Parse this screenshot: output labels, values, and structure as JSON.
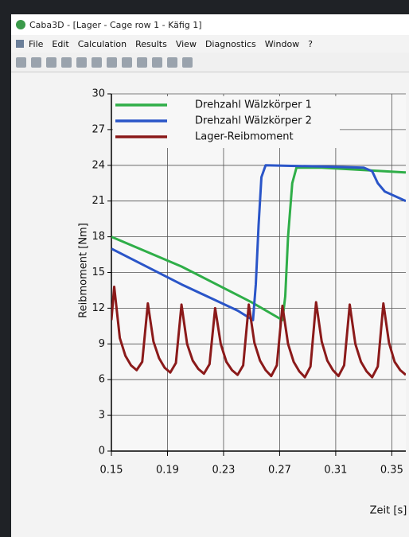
{
  "window": {
    "title": "Caba3D - [Lager - Cage row 1 - Käfig 1]",
    "menu": [
      "File",
      "Edit",
      "Calculation",
      "Results",
      "View",
      "Diagnostics",
      "Window",
      "?"
    ]
  },
  "chart_data": {
    "type": "line",
    "xlabel": "Zeit [s]",
    "ylabel": "Reibmoment [Nm]",
    "xlim": [
      0.15,
      0.36
    ],
    "xticks": [
      0.15,
      0.19,
      0.23,
      0.27,
      0.31,
      0.35
    ],
    "ylim": [
      0,
      30
    ],
    "yticks": [
      0,
      3,
      6,
      9,
      12,
      15,
      18,
      21,
      24,
      27,
      30
    ],
    "grid": true,
    "legend": "upper left",
    "series": [
      {
        "name": "Drehzahl Wälzkörper 1",
        "color": "#2fae48",
        "x": [
          0.15,
          0.2,
          0.25,
          0.272,
          0.274,
          0.276,
          0.279,
          0.282,
          0.3,
          0.33,
          0.36
        ],
        "values": [
          18,
          15.5,
          12.5,
          11,
          13,
          18,
          22.5,
          23.8,
          23.8,
          23.6,
          23.4
        ]
      },
      {
        "name": "Drehzahl Wälzkörper 2",
        "color": "#2a55c8",
        "x": [
          0.15,
          0.2,
          0.24,
          0.251,
          0.253,
          0.255,
          0.257,
          0.26,
          0.3,
          0.33,
          0.336,
          0.34,
          0.345,
          0.36
        ],
        "values": [
          17,
          14,
          11.8,
          11,
          14,
          19,
          23,
          24,
          23.9,
          23.8,
          23.5,
          22.5,
          21.8,
          21
        ]
      },
      {
        "name": "Lager-Reibmoment",
        "color": "#8b1a1a",
        "x": [
          0.15,
          0.152,
          0.156,
          0.16,
          0.164,
          0.168,
          0.172,
          0.176,
          0.18,
          0.184,
          0.188,
          0.192,
          0.196,
          0.2,
          0.204,
          0.208,
          0.212,
          0.216,
          0.22,
          0.224,
          0.228,
          0.232,
          0.236,
          0.24,
          0.244,
          0.248,
          0.252,
          0.256,
          0.26,
          0.264,
          0.268,
          0.272,
          0.276,
          0.28,
          0.284,
          0.288,
          0.292,
          0.296,
          0.3,
          0.304,
          0.308,
          0.312,
          0.316,
          0.32,
          0.324,
          0.328,
          0.332,
          0.336,
          0.34,
          0.344,
          0.348,
          0.352,
          0.356,
          0.36
        ],
        "values": [
          11,
          13.8,
          9.5,
          8,
          7.2,
          6.8,
          7.5,
          12.4,
          9.2,
          7.8,
          7,
          6.6,
          7.4,
          12.3,
          9,
          7.6,
          6.9,
          6.5,
          7.3,
          12,
          9,
          7.5,
          6.8,
          6.4,
          7.2,
          12.3,
          9.1,
          7.6,
          6.8,
          6.3,
          7.2,
          12.2,
          9,
          7.5,
          6.7,
          6.2,
          7.1,
          12.5,
          9.2,
          7.6,
          6.8,
          6.3,
          7.2,
          12.3,
          9,
          7.5,
          6.7,
          6.2,
          7.1,
          12.4,
          9.1,
          7.5,
          6.8,
          6.4
        ]
      }
    ]
  }
}
